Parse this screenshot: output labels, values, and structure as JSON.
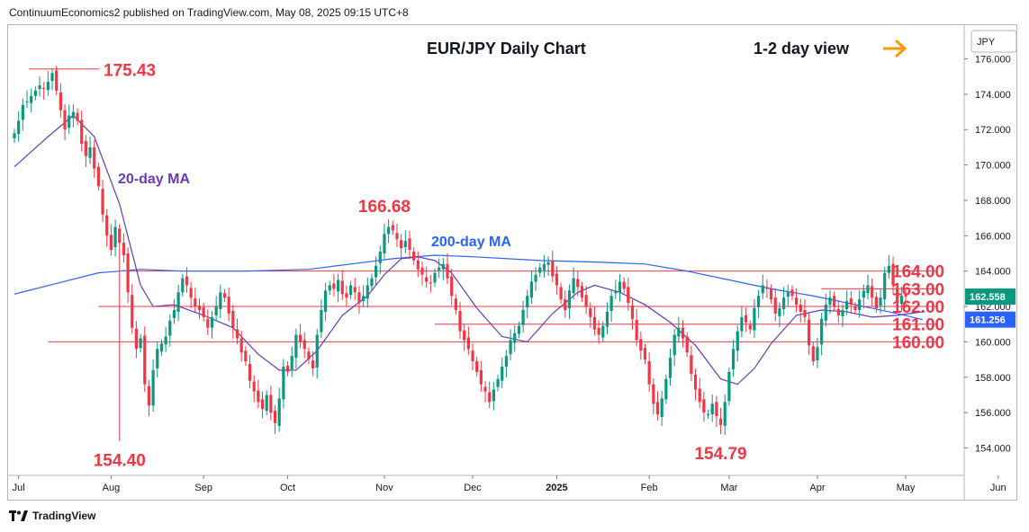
{
  "header": {
    "text": "ContinuumEconomics2 published on TradingView.com, May 08, 2025 09:15 UTC+8"
  },
  "footer": {
    "brand": "TradingView"
  },
  "chart_data": {
    "type": "candlestick",
    "title": "EUR/JPY Daily Chart",
    "subtitle": "1-2 day view",
    "currency": "JPY",
    "ylim": [
      152.5,
      177.5
    ],
    "y_ticks": [
      "176.000",
      "174.000",
      "172.000",
      "170.000",
      "168.000",
      "166.000",
      "164.000",
      "162.000",
      "160.000",
      "158.000",
      "156.000",
      "154.000"
    ],
    "x_ticks": [
      {
        "label": "Jul",
        "index": 1
      },
      {
        "label": "Aug",
        "index": 23
      },
      {
        "label": "Sep",
        "index": 45
      },
      {
        "label": "Oct",
        "index": 65
      },
      {
        "label": "Nov",
        "index": 88
      },
      {
        "label": "Dec",
        "index": 109
      },
      {
        "label": "2025",
        "index": 129
      },
      {
        "label": "Feb",
        "index": 151
      },
      {
        "label": "Mar",
        "index": 170
      },
      {
        "label": "Apr",
        "index": 191
      },
      {
        "label": "May",
        "index": 212
      },
      {
        "label": "Jun",
        "index": 234
      }
    ],
    "last_index": 216,
    "colors": {
      "up": "#089981",
      "down": "#f23645",
      "level": "#f23645",
      "ma20": "#673ab7",
      "ma200": "#2962ff",
      "arrow": "#ff9800"
    },
    "closes": [
      171.8,
      172.5,
      173.4,
      173.6,
      173.9,
      174.2,
      174.5,
      174.3,
      174.7,
      175.2,
      174.2,
      173.1,
      172.0,
      172.8,
      173.0,
      172.5,
      171.2,
      170.5,
      171.0,
      169.8,
      168.8,
      167.2,
      166.0,
      165.2,
      166.5,
      165.6,
      164.9,
      162.8,
      160.8,
      159.6,
      160.2,
      157.6,
      156.4,
      158.4,
      159.6,
      159.9,
      160.3,
      161.2,
      161.8,
      162.8,
      163.6,
      163.2,
      162.5,
      162.0,
      161.8,
      161.4,
      160.8,
      161.4,
      162.0,
      162.8,
      162.5,
      161.6,
      160.8,
      160.2,
      159.4,
      158.9,
      157.8,
      157.2,
      156.6,
      156.2,
      157.0,
      156.0,
      155.4,
      156.8,
      158.6,
      158.3,
      159.2,
      160.4,
      160.0,
      159.6,
      159.0,
      158.5,
      160.4,
      161.8,
      162.9,
      163.2,
      163.0,
      163.5,
      162.7,
      162.5,
      163.2,
      162.8,
      162.2,
      162.6,
      163.2,
      163.6,
      164.3,
      165.1,
      166.1,
      166.5,
      166.3,
      165.8,
      165.3,
      165.7,
      165.2,
      164.6,
      164.1,
      163.8,
      163.4,
      163.3,
      163.9,
      164.2,
      164.4,
      163.6,
      162.6,
      161.8,
      160.6,
      160.1,
      159.6,
      158.9,
      158.3,
      157.6,
      157.2,
      156.6,
      157.3,
      157.9,
      158.6,
      159.2,
      160.1,
      160.5,
      160.9,
      161.8,
      162.6,
      163.4,
      163.8,
      164.2,
      164.4,
      164.5,
      163.7,
      163.2,
      162.4,
      161.8,
      162.9,
      163.6,
      163.1,
      162.5,
      162.0,
      161.4,
      160.7,
      160.4,
      160.9,
      161.7,
      162.6,
      162.9,
      163.4,
      163.0,
      162.2,
      161.3,
      160.1,
      159.5,
      159.0,
      157.6,
      156.5,
      155.9,
      156.8,
      157.9,
      159.1,
      160.4,
      160.8,
      160.2,
      159.4,
      158.2,
      157.3,
      156.6,
      156.0,
      155.9,
      156.5,
      155.8,
      155.3,
      156.6,
      158.3,
      159.6,
      160.6,
      161.4,
      161.1,
      160.7,
      161.9,
      162.6,
      163.2,
      163.0,
      162.4,
      161.6,
      161.9,
      162.5,
      162.8,
      162.6,
      162.1,
      161.7,
      161.4,
      159.8,
      158.9,
      159.7,
      161.3,
      162.1,
      162.5,
      162.0,
      161.5,
      161.8,
      162.3,
      162.1,
      161.8,
      162.4,
      162.9,
      163.2,
      162.5,
      161.9,
      162.5,
      163.9,
      164.3,
      163.2,
      162.2,
      162.6,
      162.558
    ],
    "ma20": [
      [
        0,
        169.9
      ],
      [
        8,
        171.6
      ],
      [
        14,
        172.8
      ],
      [
        19,
        171.6
      ],
      [
        25,
        167.8
      ],
      [
        30,
        163.2
      ],
      [
        33,
        162.0
      ],
      [
        38,
        162.1
      ],
      [
        45,
        161.5
      ],
      [
        52,
        160.8
      ],
      [
        58,
        159.3
      ],
      [
        63,
        158.4
      ],
      [
        67,
        158.4
      ],
      [
        72,
        159.5
      ],
      [
        78,
        161.5
      ],
      [
        84,
        162.6
      ],
      [
        88,
        163.8
      ],
      [
        92,
        164.7
      ],
      [
        96,
        164.8
      ],
      [
        100,
        164.6
      ],
      [
        104,
        163.9
      ],
      [
        110,
        161.9
      ],
      [
        116,
        160.3
      ],
      [
        122,
        160.0
      ],
      [
        128,
        161.6
      ],
      [
        134,
        162.8
      ],
      [
        138,
        163.2
      ],
      [
        144,
        162.8
      ],
      [
        150,
        162.1
      ],
      [
        156,
        161.1
      ],
      [
        162,
        159.8
      ],
      [
        168,
        157.9
      ],
      [
        172,
        157.6
      ],
      [
        176,
        158.5
      ],
      [
        180,
        159.9
      ],
      [
        186,
        161.5
      ],
      [
        192,
        161.8
      ],
      [
        198,
        161.7
      ],
      [
        204,
        161.4
      ],
      [
        210,
        161.5
      ],
      [
        216,
        161.7
      ]
    ],
    "ma200": [
      [
        0,
        162.7
      ],
      [
        10,
        163.3
      ],
      [
        20,
        163.9
      ],
      [
        30,
        164.1
      ],
      [
        40,
        164.0
      ],
      [
        55,
        164.0
      ],
      [
        70,
        164.1
      ],
      [
        80,
        164.4
      ],
      [
        90,
        164.7
      ],
      [
        100,
        164.9
      ],
      [
        110,
        164.8
      ],
      [
        125,
        164.6
      ],
      [
        140,
        164.5
      ],
      [
        150,
        164.4
      ],
      [
        160,
        164.0
      ],
      [
        170,
        163.5
      ],
      [
        180,
        163.0
      ],
      [
        190,
        162.6
      ],
      [
        200,
        162.1
      ],
      [
        210,
        161.6
      ],
      [
        216,
        161.256
      ]
    ],
    "levels": [
      {
        "label": "164.00",
        "value": 164.0,
        "from_index": 27
      },
      {
        "label": "163.00",
        "value": 163.0,
        "from_index": 192
      },
      {
        "label": "162.00",
        "value": 162.0,
        "from_index": 20
      },
      {
        "label": "161.00",
        "value": 161.0,
        "from_index": 100
      },
      {
        "label": "160.00",
        "value": 160.0,
        "from_index": 8
      }
    ],
    "peaks": [
      {
        "label": "175.43",
        "value": 175.43,
        "index": 9
      },
      {
        "label": "154.40",
        "value": 154.4,
        "index": 25
      },
      {
        "label": "166.68",
        "value": 166.68,
        "index": 88
      },
      {
        "label": "154.79",
        "value": 154.79,
        "index": 168
      }
    ],
    "annotations": [
      {
        "label": "20-day MA",
        "target": "ma20"
      },
      {
        "label": "200-day MA",
        "target": "ma200"
      }
    ],
    "last_price_labels": [
      {
        "label": "162.558",
        "value": 162.558,
        "color": "#089981"
      },
      {
        "label": "161.256",
        "value": 161.256,
        "color": "#2962ff"
      }
    ]
  }
}
